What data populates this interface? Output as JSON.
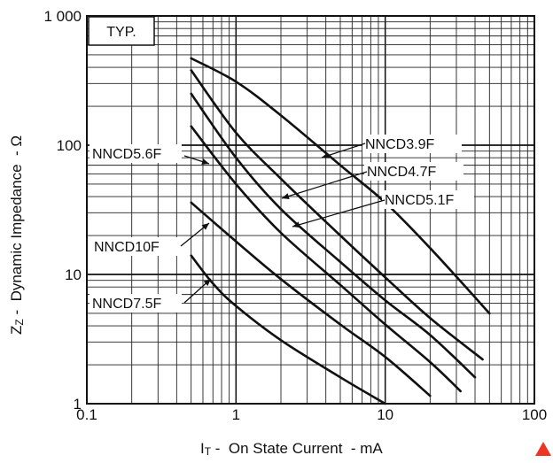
{
  "chart_data": {
    "type": "line",
    "title": "",
    "xlabel_main": "I",
    "xlabel_sub": "T",
    "xlabel_rest": " -  On State Current  - mA",
    "ylabel_main": "Z",
    "ylabel_sub": "Z",
    "ylabel_rest": " -  Dynamic Impedance  - Ω",
    "xscale": "log",
    "yscale": "log",
    "xlim": [
      0.1,
      100
    ],
    "ylim": [
      1,
      1000
    ],
    "x_tick_labels": [
      "0.1",
      "1",
      "10",
      "100"
    ],
    "y_tick_labels": [
      "1",
      "10",
      "100",
      "1 000"
    ],
    "grid": true,
    "annotation": "TYP.",
    "series": [
      {
        "name": "NNCD3.9F",
        "x": [
          0.5,
          1,
          2,
          5,
          10,
          20,
          50
        ],
        "y": [
          470,
          310,
          170,
          70,
          36,
          16,
          5
        ]
      },
      {
        "name": "NNCD4.7F",
        "x": [
          0.5,
          1,
          2,
          5,
          10,
          20,
          45
        ],
        "y": [
          380,
          125,
          55,
          20,
          9.5,
          4.6,
          2.2
        ]
      },
      {
        "name": "NNCD5.1F",
        "x": [
          0.5,
          1,
          2,
          5,
          10,
          20,
          40
        ],
        "y": [
          250,
          80,
          32,
          12.5,
          6.3,
          3.4,
          1.6
        ]
      },
      {
        "name": "NNCD5.6F",
        "x": [
          0.5,
          1,
          2,
          5,
          10,
          20,
          32
        ],
        "y": [
          140,
          50,
          21,
          8.3,
          4.1,
          2.1,
          1.25
        ]
      },
      {
        "name": "NNCD10F",
        "x": [
          0.5,
          1,
          2,
          5,
          10,
          20
        ],
        "y": [
          36,
          18,
          9.2,
          4.1,
          2.3,
          1.15
        ]
      },
      {
        "name": "NNCD7.5F",
        "x": [
          0.5,
          0.7,
          1,
          2,
          5,
          10
        ],
        "y": [
          14,
          8.5,
          5.7,
          3.1,
          1.6,
          1.0
        ]
      }
    ]
  }
}
